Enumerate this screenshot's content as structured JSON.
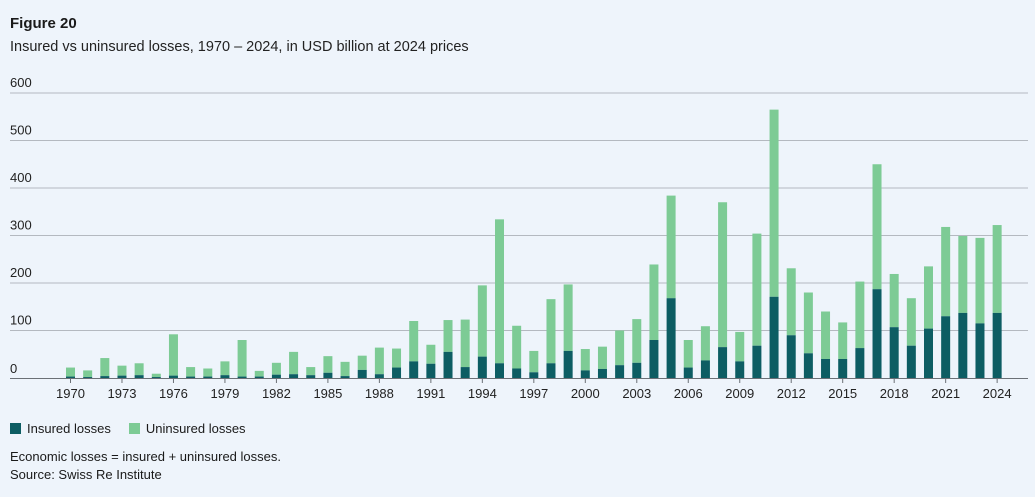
{
  "figure_label": "Figure 20",
  "colors": {
    "insured": "#0d5d63",
    "uninsured": "#7dcb95",
    "grid": "#b4b9c0",
    "background": "#eef4fb"
  },
  "chart_data": {
    "type": "bar",
    "stacked": true,
    "title": "Insured vs uninsured losses, 1970 – 2024, in USD billion at 2024 prices",
    "xlabel": "",
    "ylabel": "",
    "ylim": [
      0,
      600
    ],
    "yticks": [
      0,
      100,
      200,
      300,
      400,
      500,
      600
    ],
    "xtick_labels": [
      "1970",
      "1973",
      "1976",
      "1979",
      "1982",
      "1985",
      "1988",
      "1991",
      "1994",
      "1997",
      "2000",
      "2003",
      "2006",
      "2009",
      "2012",
      "2015",
      "2018",
      "2021",
      "2024"
    ],
    "grid": true,
    "legend_position": "bottom-left",
    "categories": [
      1970,
      1971,
      1972,
      1973,
      1974,
      1975,
      1976,
      1977,
      1978,
      1979,
      1980,
      1981,
      1982,
      1983,
      1984,
      1985,
      1986,
      1987,
      1988,
      1989,
      1990,
      1991,
      1992,
      1993,
      1994,
      1995,
      1996,
      1997,
      1998,
      1999,
      2000,
      2001,
      2002,
      2003,
      2004,
      2005,
      2006,
      2007,
      2008,
      2009,
      2010,
      2011,
      2012,
      2013,
      2014,
      2015,
      2016,
      2017,
      2018,
      2019,
      2020,
      2021,
      2022,
      2023,
      2024
    ],
    "series": [
      {
        "name": "Insured losses",
        "values": [
          3,
          2,
          4,
          5,
          6,
          2,
          5,
          3,
          3,
          6,
          3,
          3,
          7,
          8,
          6,
          11,
          4,
          17,
          8,
          22,
          35,
          30,
          55,
          23,
          45,
          31,
          20,
          12,
          31,
          57,
          16,
          19,
          27,
          32,
          80,
          168,
          22,
          37,
          65,
          35,
          68,
          171,
          90,
          52,
          40,
          40,
          63,
          187,
          107,
          68,
          104,
          130,
          137,
          115,
          137
        ]
      },
      {
        "name": "Uninsured losses",
        "values": [
          19,
          14,
          38,
          21,
          25,
          7,
          87,
          20,
          17,
          29,
          77,
          12,
          25,
          47,
          17,
          35,
          30,
          30,
          56,
          40,
          85,
          40,
          67,
          100,
          150,
          303,
          90,
          45,
          135,
          140,
          45,
          47,
          73,
          92,
          159,
          216,
          58,
          72,
          305,
          62,
          236,
          394,
          141,
          128,
          100,
          77,
          140,
          263,
          112,
          100,
          131,
          188,
          162,
          180,
          185
        ]
      }
    ],
    "economic_totals": [
      22,
      16,
      42,
      26,
      31,
      9,
      92,
      23,
      20,
      35,
      80,
      15,
      32,
      55,
      23,
      46,
      34,
      47,
      64,
      62,
      120,
      70,
      122,
      123,
      195,
      334,
      110,
      57,
      166,
      197,
      61,
      66,
      100,
      124,
      239,
      384,
      80,
      109,
      370,
      97,
      304,
      565,
      231,
      180,
      140,
      117,
      203,
      450,
      219,
      168,
      235,
      318,
      299,
      295,
      322
    ]
  },
  "legend": {
    "insured_label": "Insured losses",
    "uninsured_label": "Uninsured losses"
  },
  "notes": {
    "footnote": "Economic losses = insured + uninsured losses.",
    "source": "Source: Swiss Re Institute"
  }
}
